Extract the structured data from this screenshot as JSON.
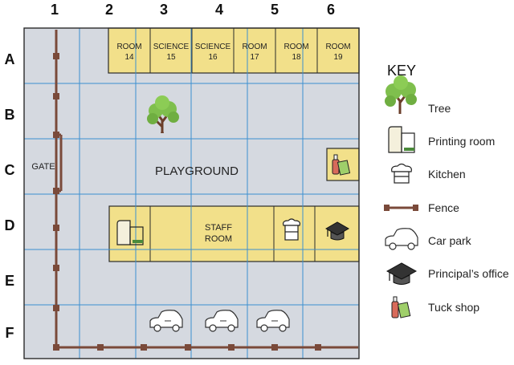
{
  "grid": {
    "columns": [
      "1",
      "2",
      "3",
      "4",
      "5",
      "6"
    ],
    "rows": [
      "A",
      "B",
      "C",
      "D",
      "E",
      "F"
    ]
  },
  "rooms": {
    "room14": [
      "ROOM",
      "14"
    ],
    "science15": [
      "SCIENCE",
      "15"
    ],
    "science16": [
      "SCIENCE",
      "16"
    ],
    "room17": [
      "ROOM",
      "17"
    ],
    "room18": [
      "ROOM",
      "18"
    ],
    "room19": [
      "ROOM",
      "19"
    ]
  },
  "labels": {
    "gate": "GATE",
    "playground": "PLAYGROUND",
    "staff_room": [
      "STAFF",
      "ROOM"
    ]
  },
  "key": {
    "title": "KEY",
    "items": [
      {
        "icon": "tree-icon",
        "label": "Tree"
      },
      {
        "icon": "printing-room-icon",
        "label": "Printing room"
      },
      {
        "icon": "kitchen-icon",
        "label": "Kitchen"
      },
      {
        "icon": "fence-icon",
        "label": "Fence"
      },
      {
        "icon": "car-icon",
        "label": "Car park"
      },
      {
        "icon": "mortarboard-icon",
        "label": "Principal’s office"
      },
      {
        "icon": "tuck-shop-icon",
        "label": "Tuck shop"
      }
    ]
  },
  "colors": {
    "map_bg": "#d5d9e0",
    "grid_line": "#3c8fd0",
    "building": "#f2e08a",
    "building_border": "#2b2b2b",
    "fence": "#7a4a3a",
    "tree": "#7fbf4d"
  }
}
